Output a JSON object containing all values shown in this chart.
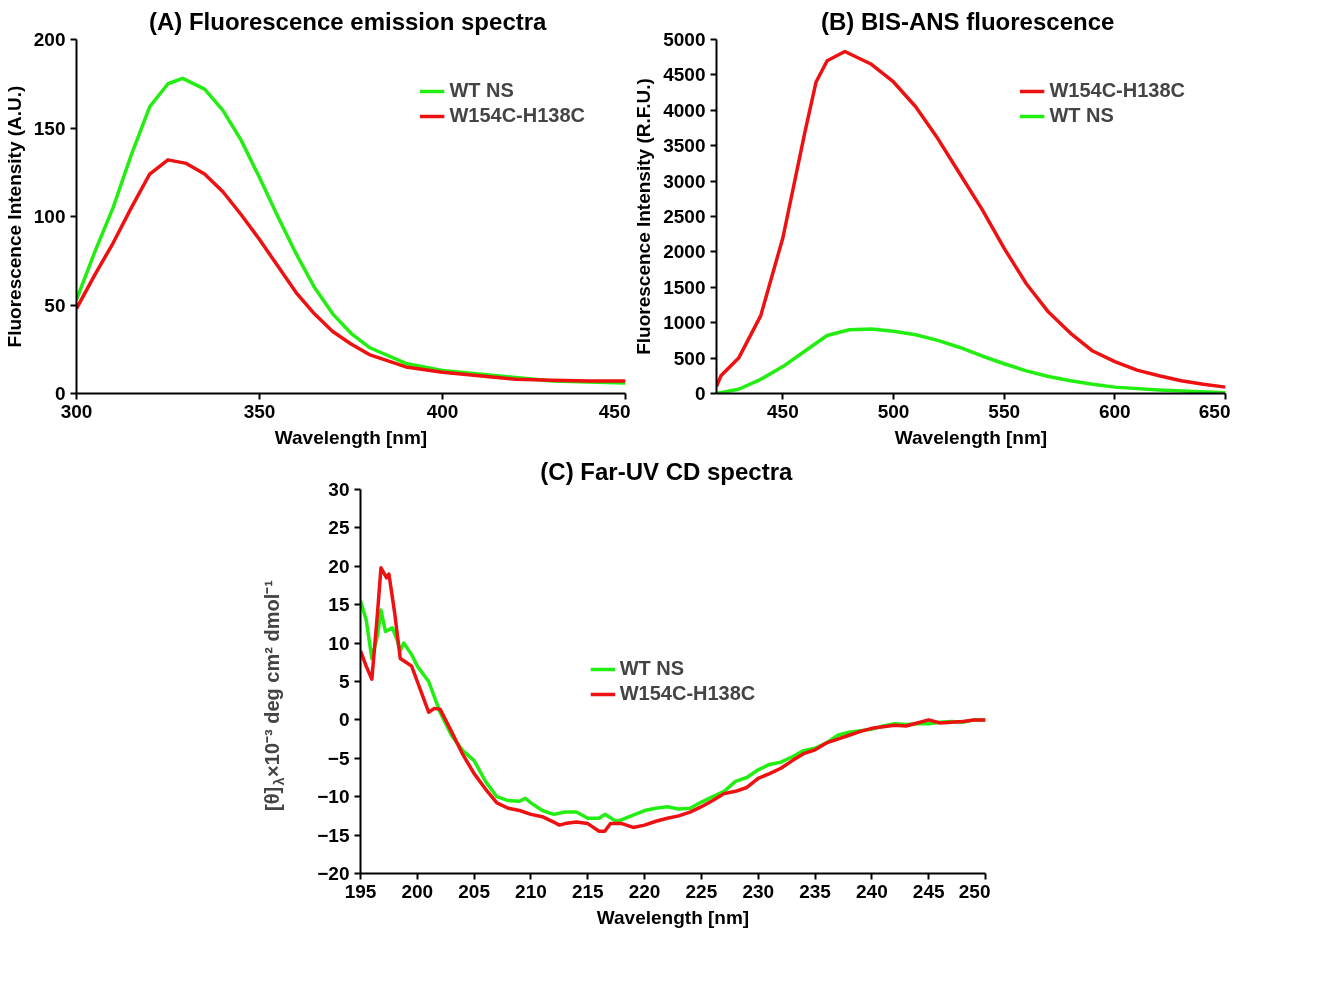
{
  "chart_data": [
    {
      "type": "line",
      "title": "(A)  Fluorescence emission spectra",
      "xlabel": "Wavelength [nm]",
      "ylabel": "Fluorescence Intensity (A.U.)",
      "xlim": [
        300,
        450
      ],
      "ylim": [
        0,
        200
      ],
      "xticks": [
        300,
        350,
        400,
        450
      ],
      "yticks": [
        0,
        50,
        100,
        150,
        200
      ],
      "grid": false,
      "legend": "top right",
      "marker": "none",
      "line_style": "solid",
      "series": [
        {
          "name": "WT NS",
          "color": "#22ee11",
          "x": [
            300,
            305,
            310,
            315,
            320,
            325,
            329,
            335,
            340,
            345,
            350,
            355,
            360,
            365,
            370,
            375,
            380,
            390,
            400,
            410,
            420,
            430,
            440,
            450
          ],
          "values": [
            53,
            80,
            105,
            135,
            162,
            175,
            178,
            172,
            160,
            143,
            122,
            100,
            79,
            60,
            45,
            34,
            26,
            17,
            13,
            11,
            9,
            7,
            6.5,
            6
          ]
        },
        {
          "name": "W154C-H138C",
          "color": "#ee1111",
          "x": [
            300,
            305,
            310,
            315,
            320,
            325,
            330,
            335,
            340,
            345,
            350,
            355,
            360,
            365,
            370,
            375,
            380,
            390,
            400,
            410,
            420,
            430,
            440,
            450
          ],
          "values": [
            48,
            67,
            85,
            105,
            124,
            132,
            130,
            124,
            114,
            101,
            87,
            72,
            57,
            45,
            35,
            28,
            22,
            15,
            12,
            10,
            8,
            7.5,
            7,
            7
          ]
        }
      ]
    },
    {
      "type": "line",
      "title": "(B)  BIS-ANS fluorescence",
      "xlabel": "Wavelength [nm]",
      "ylabel": "Fluorescence Intensity (R.F.U.)",
      "xlim": [
        420,
        650
      ],
      "ylim": [
        0,
        5000
      ],
      "xticks": [
        450,
        500,
        550,
        600,
        650
      ],
      "yticks": [
        0,
        500,
        1000,
        1500,
        2000,
        2500,
        3000,
        3500,
        4000,
        4500,
        5000
      ],
      "grid": false,
      "legend": "top right",
      "marker": "none",
      "line_style": "solid",
      "series": [
        {
          "name": "W154C-H138C",
          "color": "#ee1111",
          "x": [
            420,
            422,
            430,
            440,
            450,
            460,
            465,
            470,
            478,
            490,
            500,
            510,
            520,
            530,
            540,
            550,
            560,
            570,
            580,
            590,
            600,
            610,
            620,
            630,
            640,
            650
          ],
          "values": [
            100,
            250,
            500,
            1100,
            2200,
            3700,
            4400,
            4700,
            4830,
            4650,
            4400,
            4050,
            3600,
            3100,
            2600,
            2050,
            1550,
            1150,
            850,
            600,
            450,
            330,
            250,
            180,
            130,
            90
          ]
        },
        {
          "name": "WT NS",
          "color": "#22ee11",
          "x": [
            420,
            430,
            440,
            450,
            460,
            470,
            480,
            490,
            500,
            510,
            520,
            530,
            540,
            550,
            560,
            570,
            580,
            590,
            600,
            620,
            650
          ],
          "values": [
            0,
            60,
            200,
            380,
            600,
            820,
            900,
            910,
            880,
            830,
            750,
            650,
            530,
            420,
            320,
            240,
            180,
            130,
            90,
            50,
            10
          ]
        }
      ]
    },
    {
      "type": "line",
      "title": "(C)   Far-UV CD spectra",
      "xlabel": "Wavelength [nm]",
      "ylabel": "[θ]$_{λ}$×10⁻³ deg cm² dmol⁻¹",
      "xlim": [
        195,
        250
      ],
      "ylim": [
        -20,
        30
      ],
      "xticks": [
        195,
        200,
        205,
        210,
        215,
        220,
        225,
        230,
        235,
        240,
        245,
        250
      ],
      "yticks": [
        -20,
        -15,
        -10,
        -5,
        0,
        5,
        10,
        15,
        20,
        25,
        30
      ],
      "grid": false,
      "legend": "center",
      "marker": "none",
      "line_style": "solid",
      "series": [
        {
          "name": "WT NS",
          "color": "#22ee11",
          "x": [
            195,
            195.5,
            196,
            196.5,
            196.8,
            197.2,
            197.8,
            198.2,
            198.5,
            198.8,
            199.5,
            200,
            201,
            201.5,
            202,
            203,
            204,
            205,
            206,
            207,
            208,
            209,
            209.5,
            210,
            211,
            212,
            213,
            214,
            215,
            216,
            216.5,
            217.5,
            218,
            219,
            220,
            221,
            222,
            223,
            224,
            225,
            226,
            227,
            228,
            229,
            230,
            231,
            232,
            233,
            234,
            235,
            236,
            237,
            238,
            239,
            240,
            241,
            242,
            243,
            244,
            245,
            246,
            247,
            248,
            249,
            250
          ],
          "values": [
            15.5,
            13,
            8,
            11,
            14.3,
            11.5,
            12,
            10.5,
            9,
            10,
            8.5,
            7,
            5,
            3,
            1,
            -2,
            -4,
            -5.3,
            -8,
            -10,
            -10.5,
            -10.6,
            -10.2,
            -10.8,
            -11.8,
            -12.3,
            -12,
            -12,
            -12.8,
            -12.8,
            -12.3,
            -13.2,
            -13,
            -12.4,
            -11.8,
            -11.5,
            -11.3,
            -11.6,
            -11.5,
            -10.7,
            -10,
            -9.3,
            -8,
            -7.5,
            -6.5,
            -5.8,
            -5.5,
            -4.8,
            -4,
            -3.7,
            -3,
            -2,
            -1.6,
            -1.4,
            -1.2,
            -0.8,
            -0.5,
            -0.6,
            -0.5,
            -0.5,
            -0.3,
            -0.2,
            -0.3,
            0,
            0
          ]
        },
        {
          "name": "W154C-H138C",
          "color": "#ee1111",
          "x": [
            195,
            195.5,
            196,
            196.5,
            196.8,
            197.3,
            197.5,
            198,
            198.5,
            199,
            199.5,
            200,
            200.5,
            201,
            201.5,
            202,
            203,
            204,
            205,
            206,
            207,
            208,
            209,
            210,
            211,
            212,
            212.5,
            213,
            214,
            215,
            216,
            216.5,
            217,
            218,
            219,
            220,
            221,
            222,
            223,
            224,
            225,
            226,
            227,
            228,
            229,
            230,
            231,
            232,
            233,
            234,
            235,
            236,
            237,
            238,
            239,
            240,
            241,
            242,
            243,
            244,
            245,
            246,
            247,
            248,
            249,
            250
          ],
          "values": [
            9,
            7,
            5.3,
            14,
            19.8,
            18.5,
            19,
            14,
            8,
            7.5,
            7,
            5,
            3,
            1,
            1.5,
            1.4,
            -1.5,
            -4.5,
            -7,
            -9,
            -10.8,
            -11.5,
            -11.8,
            -12.3,
            -12.6,
            -13.3,
            -13.7,
            -13.5,
            -13.3,
            -13.5,
            -14.5,
            -14.5,
            -13.5,
            -13.5,
            -14,
            -13.7,
            -13.2,
            -12.8,
            -12.5,
            -12,
            -11.3,
            -10.5,
            -9.6,
            -9.3,
            -8.8,
            -7.6,
            -7,
            -6.3,
            -5.3,
            -4.4,
            -3.9,
            -3,
            -2.5,
            -2,
            -1.5,
            -1.1,
            -0.9,
            -0.7,
            -0.8,
            -0.4,
            0,
            -0.4,
            -0.3,
            -0.2,
            0,
            0
          ]
        }
      ]
    }
  ]
}
